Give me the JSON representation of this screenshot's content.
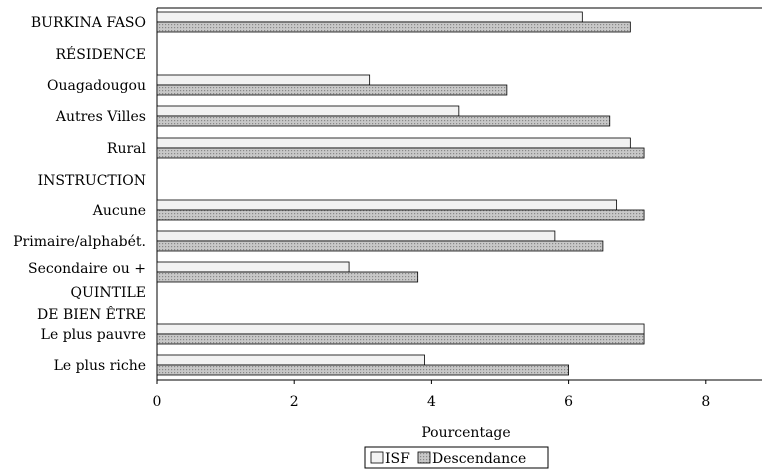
{
  "chart_data": {
    "type": "bar",
    "orientation": "horizontal",
    "title": "",
    "xlabel": "Pourcentage",
    "ylabel": "",
    "xlim": [
      0,
      8.8
    ],
    "xticks": [
      "0",
      "2",
      "4",
      "6",
      "8"
    ],
    "grid": false,
    "legend_position": "bottom",
    "categories": [
      {
        "label": "BURKINA FASO"
      },
      {
        "label": "RÉSIDENCE"
      },
      {
        "label": "Ouagadougou"
      },
      {
        "label": "Autres Villes"
      },
      {
        "label": "Rural"
      },
      {
        "label": "INSTRUCTION"
      },
      {
        "label": "Aucune"
      },
      {
        "label": "Primaire/alphabét."
      },
      {
        "label": "Secondaire ou +"
      },
      {
        "label": "QUINTILE"
      },
      {
        "label": "DE BIEN ÊTRE"
      },
      {
        "label": "Le plus pauvre"
      },
      {
        "label": "Le plus riche"
      }
    ],
    "series": [
      {
        "name": "ISF",
        "fill": "#f2f2f2",
        "values": [
          6.2,
          null,
          3.1,
          4.4,
          6.9,
          null,
          6.7,
          5.8,
          2.8,
          null,
          null,
          7.1,
          3.9
        ]
      },
      {
        "name": "Descendance",
        "fill": "#c8c8c8",
        "values": [
          6.9,
          null,
          5.1,
          6.6,
          7.1,
          null,
          7.1,
          6.5,
          3.8,
          null,
          null,
          7.1,
          6.0
        ]
      }
    ]
  }
}
